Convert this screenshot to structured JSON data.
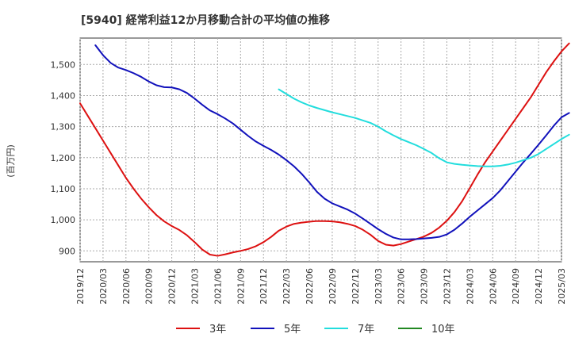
{
  "chart_data": {
    "type": "line",
    "title": "[5940]  経常利益12か月移動合計の平均値の推移",
    "ylabel": "(百万円)",
    "xlabel": "",
    "ylim": [
      865,
      1585
    ],
    "yticks": [
      900,
      1000,
      1100,
      1200,
      1300,
      1400,
      1500
    ],
    "ytick_labels": [
      "900",
      "1,000",
      "1,100",
      "1,200",
      "1,300",
      "1,400",
      "1,500"
    ],
    "x_range": [
      "2019-12",
      "2025-03"
    ],
    "xticks": [
      "2019/12",
      "2020/03",
      "2020/06",
      "2020/09",
      "2020/12",
      "2021/03",
      "2021/06",
      "2021/09",
      "2021/12",
      "2022/03",
      "2022/06",
      "2022/09",
      "2022/12",
      "2023/03",
      "2023/06",
      "2023/09",
      "2023/12",
      "2024/03",
      "2024/06",
      "2024/09",
      "2024/12",
      "2025/03"
    ],
    "grid": true,
    "legend_position": "bottom",
    "series": [
      {
        "name": "3年",
        "color": "#dd1111",
        "points": [
          [
            "2019-12",
            1375
          ],
          [
            "2020-01",
            1335
          ],
          [
            "2020-02",
            1295
          ],
          [
            "2020-03",
            1255
          ],
          [
            "2020-04",
            1215
          ],
          [
            "2020-05",
            1175
          ],
          [
            "2020-06",
            1135
          ],
          [
            "2020-07",
            1100
          ],
          [
            "2020-08",
            1068
          ],
          [
            "2020-09",
            1040
          ],
          [
            "2020-10",
            1015
          ],
          [
            "2020-11",
            995
          ],
          [
            "2020-12",
            980
          ],
          [
            "2021-01",
            967
          ],
          [
            "2021-02",
            950
          ],
          [
            "2021-03",
            928
          ],
          [
            "2021-04",
            904
          ],
          [
            "2021-05",
            888
          ],
          [
            "2021-06",
            884
          ],
          [
            "2021-07",
            889
          ],
          [
            "2021-08",
            895
          ],
          [
            "2021-09",
            900
          ],
          [
            "2021-10",
            906
          ],
          [
            "2021-11",
            915
          ],
          [
            "2021-12",
            928
          ],
          [
            "2022-01",
            945
          ],
          [
            "2022-02",
            965
          ],
          [
            "2022-03",
            978
          ],
          [
            "2022-04",
            987
          ],
          [
            "2022-05",
            991
          ],
          [
            "2022-06",
            994
          ],
          [
            "2022-07",
            996
          ],
          [
            "2022-08",
            996
          ],
          [
            "2022-09",
            995
          ],
          [
            "2022-10",
            992
          ],
          [
            "2022-11",
            987
          ],
          [
            "2022-12",
            980
          ],
          [
            "2023-01",
            968
          ],
          [
            "2023-02",
            952
          ],
          [
            "2023-03",
            932
          ],
          [
            "2023-04",
            920
          ],
          [
            "2023-05",
            917
          ],
          [
            "2023-06",
            922
          ],
          [
            "2023-07",
            930
          ],
          [
            "2023-08",
            938
          ],
          [
            "2023-09",
            946
          ],
          [
            "2023-10",
            958
          ],
          [
            "2023-11",
            975
          ],
          [
            "2023-12",
            997
          ],
          [
            "2024-01",
            1025
          ],
          [
            "2024-02",
            1060
          ],
          [
            "2024-03",
            1102
          ],
          [
            "2024-04",
            1145
          ],
          [
            "2024-05",
            1185
          ],
          [
            "2024-06",
            1220
          ],
          [
            "2024-07",
            1255
          ],
          [
            "2024-08",
            1290
          ],
          [
            "2024-09",
            1325
          ],
          [
            "2024-10",
            1360
          ],
          [
            "2024-11",
            1395
          ],
          [
            "2024-12",
            1435
          ],
          [
            "2025-01",
            1475
          ],
          [
            "2025-02",
            1510
          ],
          [
            "2025-03",
            1542
          ],
          [
            "2025-04",
            1568
          ]
        ]
      },
      {
        "name": "5年",
        "color": "#1111bb",
        "points": [
          [
            "2020-02",
            1562
          ],
          [
            "2020-03",
            1530
          ],
          [
            "2020-04",
            1505
          ],
          [
            "2020-05",
            1490
          ],
          [
            "2020-06",
            1482
          ],
          [
            "2020-07",
            1472
          ],
          [
            "2020-08",
            1460
          ],
          [
            "2020-09",
            1445
          ],
          [
            "2020-10",
            1433
          ],
          [
            "2020-11",
            1427
          ],
          [
            "2020-12",
            1426
          ],
          [
            "2021-01",
            1420
          ],
          [
            "2021-02",
            1408
          ],
          [
            "2021-03",
            1390
          ],
          [
            "2021-04",
            1370
          ],
          [
            "2021-05",
            1352
          ],
          [
            "2021-06",
            1340
          ],
          [
            "2021-07",
            1326
          ],
          [
            "2021-08",
            1310
          ],
          [
            "2021-09",
            1290
          ],
          [
            "2021-10",
            1270
          ],
          [
            "2021-11",
            1252
          ],
          [
            "2021-12",
            1238
          ],
          [
            "2022-01",
            1225
          ],
          [
            "2022-02",
            1210
          ],
          [
            "2022-03",
            1192
          ],
          [
            "2022-04",
            1172
          ],
          [
            "2022-05",
            1148
          ],
          [
            "2022-06",
            1120
          ],
          [
            "2022-07",
            1090
          ],
          [
            "2022-08",
            1068
          ],
          [
            "2022-09",
            1053
          ],
          [
            "2022-10",
            1043
          ],
          [
            "2022-11",
            1033
          ],
          [
            "2022-12",
            1020
          ],
          [
            "2023-01",
            1004
          ],
          [
            "2023-02",
            987
          ],
          [
            "2023-03",
            970
          ],
          [
            "2023-04",
            955
          ],
          [
            "2023-05",
            943
          ],
          [
            "2023-06",
            937
          ],
          [
            "2023-07",
            937
          ],
          [
            "2023-08",
            938
          ],
          [
            "2023-09",
            940
          ],
          [
            "2023-10",
            942
          ],
          [
            "2023-11",
            945
          ],
          [
            "2023-12",
            953
          ],
          [
            "2024-01",
            968
          ],
          [
            "2024-02",
            988
          ],
          [
            "2024-03",
            1010
          ],
          [
            "2024-04",
            1030
          ],
          [
            "2024-05",
            1050
          ],
          [
            "2024-06",
            1070
          ],
          [
            "2024-07",
            1095
          ],
          [
            "2024-08",
            1125
          ],
          [
            "2024-09",
            1155
          ],
          [
            "2024-10",
            1185
          ],
          [
            "2024-11",
            1213
          ],
          [
            "2024-12",
            1242
          ],
          [
            "2025-01",
            1272
          ],
          [
            "2025-02",
            1303
          ],
          [
            "2025-03",
            1330
          ],
          [
            "2025-04",
            1344
          ]
        ]
      },
      {
        "name": "7年",
        "color": "#22dddd",
        "points": [
          [
            "2022-02",
            1420
          ],
          [
            "2022-03",
            1405
          ],
          [
            "2022-04",
            1390
          ],
          [
            "2022-05",
            1378
          ],
          [
            "2022-06",
            1368
          ],
          [
            "2022-07",
            1360
          ],
          [
            "2022-08",
            1353
          ],
          [
            "2022-09",
            1346
          ],
          [
            "2022-10",
            1340
          ],
          [
            "2022-11",
            1334
          ],
          [
            "2022-12",
            1328
          ],
          [
            "2023-01",
            1320
          ],
          [
            "2023-02",
            1312
          ],
          [
            "2023-03",
            1300
          ],
          [
            "2023-04",
            1285
          ],
          [
            "2023-05",
            1272
          ],
          [
            "2023-06",
            1260
          ],
          [
            "2023-07",
            1250
          ],
          [
            "2023-08",
            1240
          ],
          [
            "2023-09",
            1228
          ],
          [
            "2023-10",
            1215
          ],
          [
            "2023-11",
            1198
          ],
          [
            "2023-12",
            1185
          ],
          [
            "2024-01",
            1180
          ],
          [
            "2024-02",
            1177
          ],
          [
            "2024-03",
            1175
          ],
          [
            "2024-04",
            1173
          ],
          [
            "2024-05",
            1172
          ],
          [
            "2024-06",
            1172
          ],
          [
            "2024-07",
            1174
          ],
          [
            "2024-08",
            1178
          ],
          [
            "2024-09",
            1184
          ],
          [
            "2024-10",
            1192
          ],
          [
            "2024-11",
            1200
          ],
          [
            "2024-12",
            1212
          ],
          [
            "2025-01",
            1228
          ],
          [
            "2025-02",
            1244
          ],
          [
            "2025-03",
            1260
          ],
          [
            "2025-04",
            1274
          ]
        ]
      },
      {
        "name": "10年",
        "color": "#228822",
        "points": []
      }
    ]
  }
}
